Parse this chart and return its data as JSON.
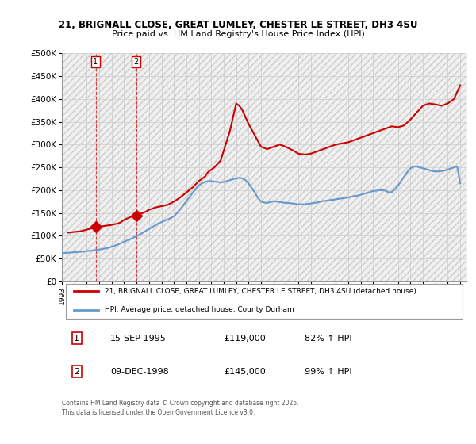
{
  "title": "21, BRIGNALL CLOSE, GREAT LUMLEY, CHESTER LE STREET, DH3 4SU",
  "subtitle": "Price paid vs. HM Land Registry's House Price Index (HPI)",
  "ylabel_ticks": [
    "£0",
    "£50K",
    "£100K",
    "£150K",
    "£200K",
    "£250K",
    "£300K",
    "£350K",
    "£400K",
    "£450K",
    "£500K"
  ],
  "ylim": [
    0,
    500000
  ],
  "xlim_start": 1993.0,
  "xlim_end": 2025.5,
  "purchase_dates": [
    "1995-09-15",
    "1998-12-09"
  ],
  "purchase_prices": [
    119000,
    145000
  ],
  "purchase_labels": [
    "1",
    "2"
  ],
  "legend_line1": "21, BRIGNALL CLOSE, GREAT LUMLEY, CHESTER LE STREET, DH3 4SU (detached house)",
  "legend_line2": "HPI: Average price, detached house, County Durham",
  "table_rows": [
    [
      "1",
      "15-SEP-1995",
      "£119,000",
      "82% ↑ HPI"
    ],
    [
      "2",
      "09-DEC-1998",
      "£145,000",
      "99% ↑ HPI"
    ]
  ],
  "footer": "Contains HM Land Registry data © Crown copyright and database right 2025.\nThis data is licensed under the Open Government Licence v3.0.",
  "hpi_color": "#6699cc",
  "price_color": "#cc0000",
  "purchase_marker_color": "#cc0000",
  "background_hatch_color": "#e8e8e8",
  "grid_color": "#cccccc",
  "hpi_data_years": [
    1993.0,
    1993.25,
    1993.5,
    1993.75,
    1994.0,
    1994.25,
    1994.5,
    1994.75,
    1995.0,
    1995.25,
    1995.5,
    1995.75,
    1996.0,
    1996.25,
    1996.5,
    1996.75,
    1997.0,
    1997.25,
    1997.5,
    1997.75,
    1998.0,
    1998.25,
    1998.5,
    1998.75,
    1999.0,
    1999.25,
    1999.5,
    1999.75,
    2000.0,
    2000.25,
    2000.5,
    2000.75,
    2001.0,
    2001.25,
    2001.5,
    2001.75,
    2002.0,
    2002.25,
    2002.5,
    2002.75,
    2003.0,
    2003.25,
    2003.5,
    2003.75,
    2004.0,
    2004.25,
    2004.5,
    2004.75,
    2005.0,
    2005.25,
    2005.5,
    2005.75,
    2006.0,
    2006.25,
    2006.5,
    2006.75,
    2007.0,
    2007.25,
    2007.5,
    2007.75,
    2008.0,
    2008.25,
    2008.5,
    2008.75,
    2009.0,
    2009.25,
    2009.5,
    2009.75,
    2010.0,
    2010.25,
    2010.5,
    2010.75,
    2011.0,
    2011.25,
    2011.5,
    2011.75,
    2012.0,
    2012.25,
    2012.5,
    2012.75,
    2013.0,
    2013.25,
    2013.5,
    2013.75,
    2014.0,
    2014.25,
    2014.5,
    2014.75,
    2015.0,
    2015.25,
    2015.5,
    2015.75,
    2016.0,
    2016.25,
    2016.5,
    2016.75,
    2017.0,
    2017.25,
    2017.5,
    2017.75,
    2018.0,
    2018.25,
    2018.5,
    2018.75,
    2019.0,
    2019.25,
    2019.5,
    2019.75,
    2020.0,
    2020.25,
    2020.5,
    2020.75,
    2021.0,
    2021.25,
    2021.5,
    2021.75,
    2022.0,
    2022.25,
    2022.5,
    2022.75,
    2023.0,
    2023.25,
    2023.5,
    2023.75,
    2024.0,
    2024.25,
    2024.5,
    2024.75,
    2025.0
  ],
  "hpi_values": [
    62000,
    62500,
    63000,
    63500,
    64000,
    64500,
    65000,
    65800,
    66500,
    67200,
    68000,
    69000,
    70000,
    71000,
    72500,
    74000,
    76000,
    78500,
    81000,
    84000,
    87000,
    90000,
    93000,
    96000,
    99000,
    103000,
    107000,
    111000,
    115000,
    119000,
    123000,
    127000,
    130000,
    133000,
    136000,
    139000,
    143000,
    150000,
    158000,
    167000,
    176000,
    185000,
    194000,
    202000,
    210000,
    215000,
    218000,
    220000,
    220000,
    219000,
    218000,
    217000,
    218000,
    220000,
    222000,
    224000,
    226000,
    227000,
    226000,
    222000,
    215000,
    205000,
    195000,
    183000,
    175000,
    173000,
    172000,
    174000,
    176000,
    175000,
    174000,
    173000,
    172000,
    172000,
    171000,
    170000,
    169000,
    169000,
    169000,
    170000,
    171000,
    172000,
    173000,
    175000,
    176000,
    177000,
    178000,
    179000,
    180000,
    181000,
    182000,
    183000,
    184000,
    186000,
    187000,
    188000,
    190000,
    192000,
    194000,
    196000,
    198000,
    199000,
    200000,
    200000,
    199000,
    195000,
    196000,
    202000,
    210000,
    220000,
    230000,
    240000,
    248000,
    252000,
    252000,
    250000,
    248000,
    246000,
    244000,
    242000,
    241000,
    241000,
    242000,
    243000,
    245000,
    248000,
    250000,
    252000,
    215000
  ],
  "price_data_years": [
    1993.5,
    1994.5,
    1995.75,
    1996.0,
    1996.5,
    1997.0,
    1997.5,
    1997.75,
    1998.0,
    1998.25,
    1998.5,
    1998.75,
    1999.25,
    1999.5,
    1999.75,
    2000.0,
    2000.5,
    2001.5,
    2002.0,
    2002.5,
    2003.0,
    2003.5,
    2004.0,
    2004.25,
    2004.5,
    2004.75,
    2005.25,
    2005.75,
    2006.5,
    2007.0,
    2007.25,
    2007.5,
    2007.75,
    2008.0,
    2008.5,
    2009.0,
    2009.5,
    2010.0,
    2010.5,
    2011.0,
    2011.5,
    2012.0,
    2012.5,
    2013.0,
    2013.5,
    2014.0,
    2014.5,
    2015.0,
    2016.0,
    2016.5,
    2017.0,
    2017.5,
    2018.0,
    2018.5,
    2019.0,
    2019.5,
    2020.0,
    2020.5,
    2021.0,
    2021.5,
    2022.0,
    2022.5,
    2023.0,
    2023.5,
    2024.0,
    2024.5,
    2025.0
  ],
  "price_values": [
    107000,
    110000,
    119000,
    120000,
    122000,
    124000,
    127000,
    130000,
    135000,
    138000,
    141000,
    144000,
    148000,
    150000,
    153000,
    157000,
    162000,
    168000,
    175000,
    184000,
    195000,
    206000,
    220000,
    225000,
    230000,
    240000,
    250000,
    265000,
    330000,
    390000,
    385000,
    375000,
    360000,
    345000,
    320000,
    295000,
    290000,
    295000,
    300000,
    295000,
    288000,
    280000,
    278000,
    280000,
    285000,
    290000,
    295000,
    300000,
    305000,
    310000,
    315000,
    320000,
    325000,
    330000,
    335000,
    340000,
    338000,
    342000,
    355000,
    370000,
    385000,
    390000,
    388000,
    385000,
    390000,
    400000,
    430000
  ]
}
